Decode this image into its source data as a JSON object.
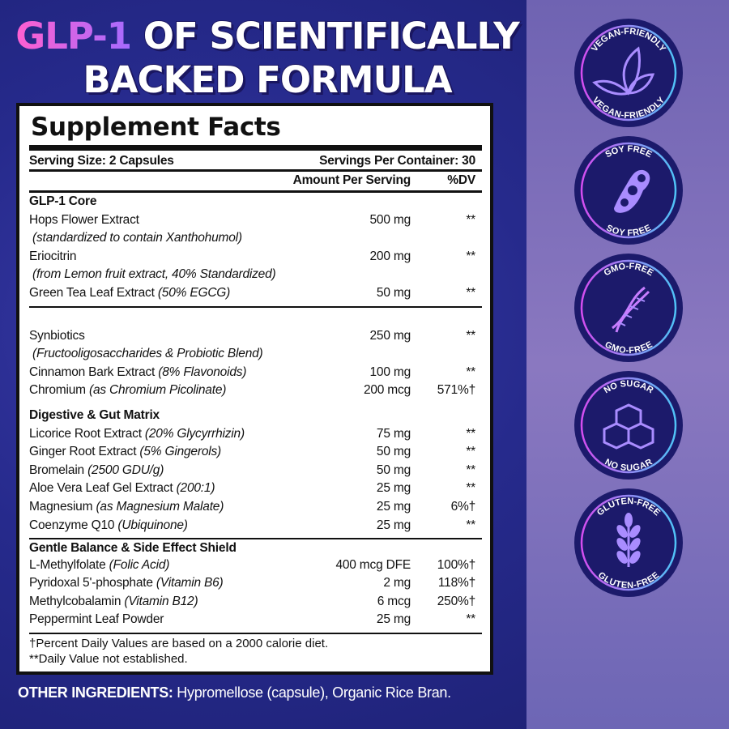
{
  "title": {
    "highlight": "GLP-1",
    "line1_rest": " OF SCIENTIFICALLY",
    "line2": "BACKED FORMULA"
  },
  "panel": {
    "heading": "Supplement Facts",
    "serving_size": "Serving Size: 2 Capsules",
    "servings_per_container": "Servings Per Container: 30",
    "col_amount": "Amount Per Serving",
    "col_dv": "%DV",
    "rows": [
      {
        "type": "sec",
        "name": "GLP-1 Core"
      },
      {
        "name": "Hops Flower Extract",
        "amount": "500 mg",
        "dv": "**"
      },
      {
        "type": "sub",
        "name": "(standardized to contain Xanthohumol)"
      },
      {
        "name": "Eriocitrin",
        "amount": "200 mg",
        "dv": "**"
      },
      {
        "type": "sub",
        "name": "(from Lemon fruit extract, 40% Standardized)"
      },
      {
        "name": "Green Tea Leaf Extract",
        "note": "(50% EGCG)",
        "amount": "50 mg",
        "dv": "**"
      },
      {
        "type": "div"
      },
      {
        "name": "Synbiotics",
        "amount": "250 mg",
        "dv": "**"
      },
      {
        "type": "sub",
        "name": "(Fructooligosaccharides & Probiotic Blend)"
      },
      {
        "name": "Cinnamon Bark Extract",
        "note": "(8% Flavonoids)",
        "amount": "100 mg",
        "dv": "**"
      },
      {
        "name": "Chromium",
        "note": "(as Chromium Picolinate)",
        "amount": "200 mcg",
        "dv": "571%†"
      },
      {
        "type": "sec",
        "name": "Digestive & Gut Matrix",
        "gap": true
      },
      {
        "name": "Licorice Root Extract",
        "note": "(20% Glycyrrhizin)",
        "amount": "75 mg",
        "dv": "**"
      },
      {
        "name": "Ginger Root Extract",
        "note": "(5% Gingerols)",
        "amount": "50 mg",
        "dv": "**"
      },
      {
        "name": "Bromelain",
        "note": "(2500 GDU/g)",
        "amount": "50 mg",
        "dv": "**"
      },
      {
        "name": "Aloe Vera Leaf Gel Extract",
        "note": "(200:1)",
        "amount": "25 mg",
        "dv": "**"
      },
      {
        "name": "Magnesium",
        "note": "(as Magnesium Malate)",
        "amount": "25 mg",
        "dv": "6%†"
      },
      {
        "name": "Coenzyme Q10",
        "note": "(Ubiquinone)",
        "amount": "25 mg",
        "dv": "**"
      },
      {
        "type": "sec",
        "name": "Gentle Balance & Side Effect Shield",
        "line": true
      },
      {
        "name": "L-Methylfolate",
        "note": "(Folic Acid)",
        "amount": "400 mcg DFE",
        "dv": "100%†"
      },
      {
        "name": "Pyridoxal 5'-phosphate",
        "note": "(Vitamin B6)",
        "amount": "2 mg",
        "dv": "118%†"
      },
      {
        "name": "Methylcobalamin",
        "note": "(Vitamin B12)",
        "amount": "6 mcg",
        "dv": "250%†"
      },
      {
        "name": "Peppermint Leaf Powder",
        "amount": "25 mg",
        "dv": "**"
      }
    ],
    "footnotes": [
      "†Percent Daily Values are based on a 2000 calorie diet.",
      "**Daily Value not established."
    ]
  },
  "other": {
    "label": "OTHER INGREDIENTS:",
    "value": " Hypromellose (capsule), Organic Rice Bran."
  },
  "badges": [
    {
      "icon": "leaf-icon",
      "text": "VEGAN-FRIENDLY"
    },
    {
      "icon": "soybean-icon",
      "text": "SOY FREE"
    },
    {
      "icon": "dna-icon",
      "text": "GMO-FREE"
    },
    {
      "icon": "sugar-cubes-icon",
      "text": "NO SUGAR"
    },
    {
      "icon": "wheat-icon",
      "text": "GLUTEN-FREE"
    }
  ],
  "colors": {
    "background": "#262a8c",
    "side_panel": "#7b6bb8",
    "badge_fill": "#1c1a6b",
    "accent_pink": "#d44df0",
    "accent_cyan": "#4fc3f7"
  }
}
